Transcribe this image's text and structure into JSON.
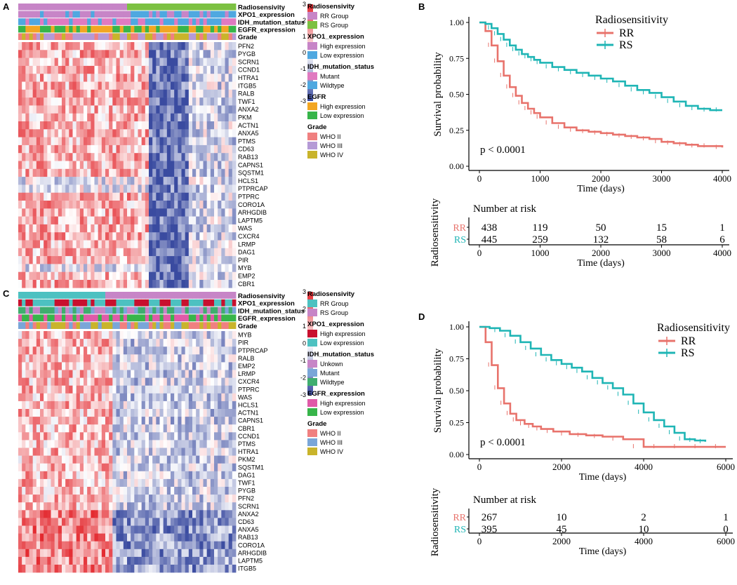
{
  "colors": {
    "low": "#3a4ba0",
    "mid": "#ffffff",
    "high": "#e3262c",
    "rr_curve": "#e8736c",
    "rs_curve": "#1fb5b5",
    "a_rr_group": "#c785c7",
    "a_rs_group": "#7cc142",
    "a_xpo1_high": "#c785c7",
    "a_xpo1_low": "#4fa8e0",
    "a_idh_mutant": "#e07ac0",
    "a_idh_wild": "#4fa8e0",
    "a_egfr_high": "#f2a623",
    "a_egfr_low": "#37b54a",
    "a_who2": "#f08080",
    "a_who3": "#b59ad6",
    "a_who4": "#c9b42b",
    "c_rr_group": "#4dc1c1",
    "c_rs_group": "#c785c7",
    "c_xpo1_high": "#c8102e",
    "c_xpo1_low": "#4dc1c1",
    "c_idh_unknown": "#c785c7",
    "c_idh_mutant": "#7aa6d8",
    "c_idh_wild": "#3fae6f",
    "c_egfr_high": "#e05aa8",
    "c_egfr_low": "#37b54a",
    "c_who2": "#f08080",
    "c_who3": "#7aa6d8",
    "c_who4": "#c9b42b"
  },
  "panel_a": {
    "label": "A",
    "annotation_tracks": [
      "Radiosensivity",
      "XPO1_expression",
      "IDH_mutation_status",
      "EGFR_expression",
      "Grade"
    ],
    "genes": [
      "PFN2",
      "PYGB",
      "SCRN1",
      "CCND1",
      "HTRA1",
      "ITGB5",
      "RALB",
      "TWF1",
      "ANXA2",
      "PKM",
      "ACTN1",
      "ANXA5",
      "PTMS",
      "CD63",
      "RAB13",
      "CAPNS1",
      "SQSTM1",
      "HCLS1",
      "PTPRCAP",
      "PTPRC",
      "CORO1A",
      "ARHGDIB",
      "LAPTM5",
      "WAS",
      "CXCR4",
      "LRMP",
      "DAG1",
      "PIR",
      "MYB",
      "EMP2",
      "CBR1"
    ],
    "scale_ticks": [
      "3",
      "2",
      "1",
      "0",
      "-1",
      "-2",
      "-3"
    ],
    "legend": [
      {
        "title": "Radiosensivity",
        "items": [
          {
            "label": "RR Group",
            "color": "a_rr_group"
          },
          {
            "label": "RS Group",
            "color": "a_rs_group"
          }
        ]
      },
      {
        "title": "XPO1_expression",
        "items": [
          {
            "label": "High expression",
            "color": "a_xpo1_high"
          },
          {
            "label": "Low expression",
            "color": "a_xpo1_low"
          }
        ]
      },
      {
        "title": "IDH_mutation_status",
        "items": [
          {
            "label": "Mutant",
            "color": "a_idh_mutant"
          },
          {
            "label": "Wildtype",
            "color": "a_idh_wild"
          }
        ]
      },
      {
        "title": "EGFR",
        "items": [
          {
            "label": "High expression",
            "color": "a_egfr_high"
          },
          {
            "label": "Low expression",
            "color": "a_egfr_low"
          }
        ]
      },
      {
        "title": "Grade",
        "items": [
          {
            "label": "WHO II",
            "color": "a_who2"
          },
          {
            "label": "WHO III",
            "color": "a_who3"
          },
          {
            "label": "WHO IV",
            "color": "a_who4"
          }
        ]
      }
    ]
  },
  "panel_c": {
    "label": "C",
    "annotation_tracks": [
      "Radiosensivity",
      "XPO1_expression",
      "IDH_mutation_status",
      "EGFR_expression",
      "Grade"
    ],
    "genes": [
      "MYB",
      "PIR",
      "PTPRCAP",
      "RALB",
      "EMP2",
      "LRMP",
      "CXCR4",
      "PTPRC",
      "WAS",
      "HCLS1",
      "ACTN1",
      "CAPNS1",
      "CBR1",
      "CCND1",
      "PTMS",
      "HTRA1",
      "PKM2",
      "SQSTM1",
      "DAG1",
      "TWF1",
      "PYGB",
      "PFN2",
      "SCRN1",
      "ANXA2",
      "CD63",
      "ANXA5",
      "RAB13",
      "CORO1A",
      "ARHGDIB",
      "LAPTM5",
      "ITGB5"
    ],
    "scale_ticks": [
      "3",
      "2",
      "1",
      "0",
      "-1",
      "-2",
      "-3"
    ],
    "legend": [
      {
        "title": "Radiosensivity",
        "items": [
          {
            "label": "RR Group",
            "color": "c_rr_group"
          },
          {
            "label": "RS Group",
            "color": "c_rs_group"
          }
        ]
      },
      {
        "title": "XPO1_expression",
        "items": [
          {
            "label": "High expression",
            "color": "c_xpo1_high"
          },
          {
            "label": "Low expression",
            "color": "c_xpo1_low"
          }
        ]
      },
      {
        "title": "IDH_mutation_status",
        "items": [
          {
            "label": "Unkown",
            "color": "c_idh_unknown"
          },
          {
            "label": "Mutant",
            "color": "c_idh_mutant"
          },
          {
            "label": "Wildtype",
            "color": "c_idh_wild"
          }
        ]
      },
      {
        "title": "EGFR_expression",
        "items": [
          {
            "label": "High expression",
            "color": "c_egfr_high"
          },
          {
            "label": "Low expression",
            "color": "c_egfr_low"
          }
        ]
      },
      {
        "title": "Grade",
        "items": [
          {
            "label": "WHO II",
            "color": "c_who2"
          },
          {
            "label": "WHO III",
            "color": "c_who3"
          },
          {
            "label": "WHO IV",
            "color": "c_who4"
          }
        ]
      }
    ]
  },
  "chart_data": [
    {
      "panel": "B",
      "type": "line",
      "title": "",
      "xlabel": "Time (days)",
      "ylabel": "Survival probability",
      "xlim": [
        0,
        4000
      ],
      "ylim": [
        0,
        1
      ],
      "x_ticks": [
        "0",
        "1000",
        "2000",
        "3000",
        "4000"
      ],
      "y_ticks": [
        "0.00",
        "0.25",
        "0.50",
        "0.75",
        "1.00"
      ],
      "legend_title": "Radiosensitivity",
      "pvalue": "p < 0.0001",
      "series": [
        {
          "name": "RR",
          "color": "rr_curve",
          "x": [
            0,
            100,
            200,
            300,
            400,
            500,
            600,
            700,
            800,
            900,
            1000,
            1200,
            1400,
            1600,
            1800,
            2000,
            2200,
            2400,
            2600,
            2800,
            3000,
            3200,
            3400,
            3600,
            3800,
            4000
          ],
          "y": [
            1.0,
            0.94,
            0.84,
            0.73,
            0.63,
            0.55,
            0.49,
            0.44,
            0.4,
            0.37,
            0.34,
            0.3,
            0.27,
            0.25,
            0.24,
            0.23,
            0.22,
            0.21,
            0.2,
            0.19,
            0.17,
            0.16,
            0.15,
            0.14,
            0.14,
            0.13
          ]
        },
        {
          "name": "RS",
          "color": "rs_curve",
          "x": [
            0,
            100,
            200,
            300,
            400,
            500,
            600,
            700,
            800,
            900,
            1000,
            1200,
            1400,
            1600,
            1800,
            2000,
            2200,
            2400,
            2600,
            2800,
            3000,
            3200,
            3400,
            3600,
            3800,
            4000
          ],
          "y": [
            1.0,
            0.99,
            0.96,
            0.92,
            0.88,
            0.84,
            0.81,
            0.78,
            0.76,
            0.74,
            0.72,
            0.69,
            0.67,
            0.65,
            0.63,
            0.61,
            0.59,
            0.56,
            0.53,
            0.51,
            0.48,
            0.45,
            0.42,
            0.4,
            0.39,
            0.39
          ]
        }
      ],
      "risk_table": {
        "title": "Number at risk",
        "ylabel": "Radiosensitivity",
        "xlabel": "Time (days)",
        "times": [
          "0",
          "1000",
          "2000",
          "3000",
          "4000"
        ],
        "rows": [
          {
            "name": "RR",
            "values": [
              "438",
              "119",
              "50",
              "15",
              "1"
            ]
          },
          {
            "name": "RS",
            "values": [
              "445",
              "259",
              "132",
              "58",
              "6"
            ]
          }
        ]
      }
    },
    {
      "panel": "D",
      "type": "line",
      "title": "",
      "xlabel": "Time (days)",
      "ylabel": "Survival probability",
      "xlim": [
        0,
        6000
      ],
      "ylim": [
        0,
        1
      ],
      "x_ticks": [
        "0",
        "2000",
        "4000",
        "6000"
      ],
      "y_ticks": [
        "0.00",
        "0.25",
        "0.50",
        "0.75",
        "1.00"
      ],
      "legend_title": "Radiosensitivity",
      "pvalue": "p < 0.0001",
      "series": [
        {
          "name": "RR",
          "color": "rr_curve",
          "x": [
            0,
            150,
            300,
            450,
            600,
            750,
            900,
            1100,
            1300,
            1500,
            1800,
            2200,
            2600,
            3000,
            3500,
            4000,
            4500,
            5000,
            5500,
            6000
          ],
          "y": [
            1.0,
            0.88,
            0.7,
            0.52,
            0.4,
            0.32,
            0.27,
            0.24,
            0.22,
            0.2,
            0.18,
            0.16,
            0.15,
            0.14,
            0.12,
            0.06,
            0.06,
            0.06,
            0.06,
            0.06
          ]
        },
        {
          "name": "RS",
          "color": "rs_curve",
          "x": [
            0,
            250,
            500,
            750,
            1000,
            1250,
            1500,
            1750,
            2000,
            2250,
            2500,
            2750,
            3000,
            3250,
            3500,
            3750,
            4000,
            4250,
            4500,
            4750,
            5000,
            5250,
            5500
          ],
          "y": [
            1.0,
            0.99,
            0.97,
            0.93,
            0.88,
            0.83,
            0.78,
            0.74,
            0.71,
            0.68,
            0.65,
            0.6,
            0.56,
            0.52,
            0.47,
            0.4,
            0.33,
            0.27,
            0.22,
            0.17,
            0.12,
            0.11,
            0.1
          ]
        }
      ],
      "risk_table": {
        "title": "Number at risk",
        "ylabel": "Radiosensitivity",
        "xlabel": "Time (days)",
        "times": [
          "0",
          "2000",
          "4000",
          "6000"
        ],
        "rows": [
          {
            "name": "RR",
            "values": [
              "267",
              "10",
              "2",
              "1"
            ]
          },
          {
            "name": "RS",
            "values": [
              "395",
              "45",
              "10",
              "0"
            ]
          }
        ]
      }
    }
  ]
}
